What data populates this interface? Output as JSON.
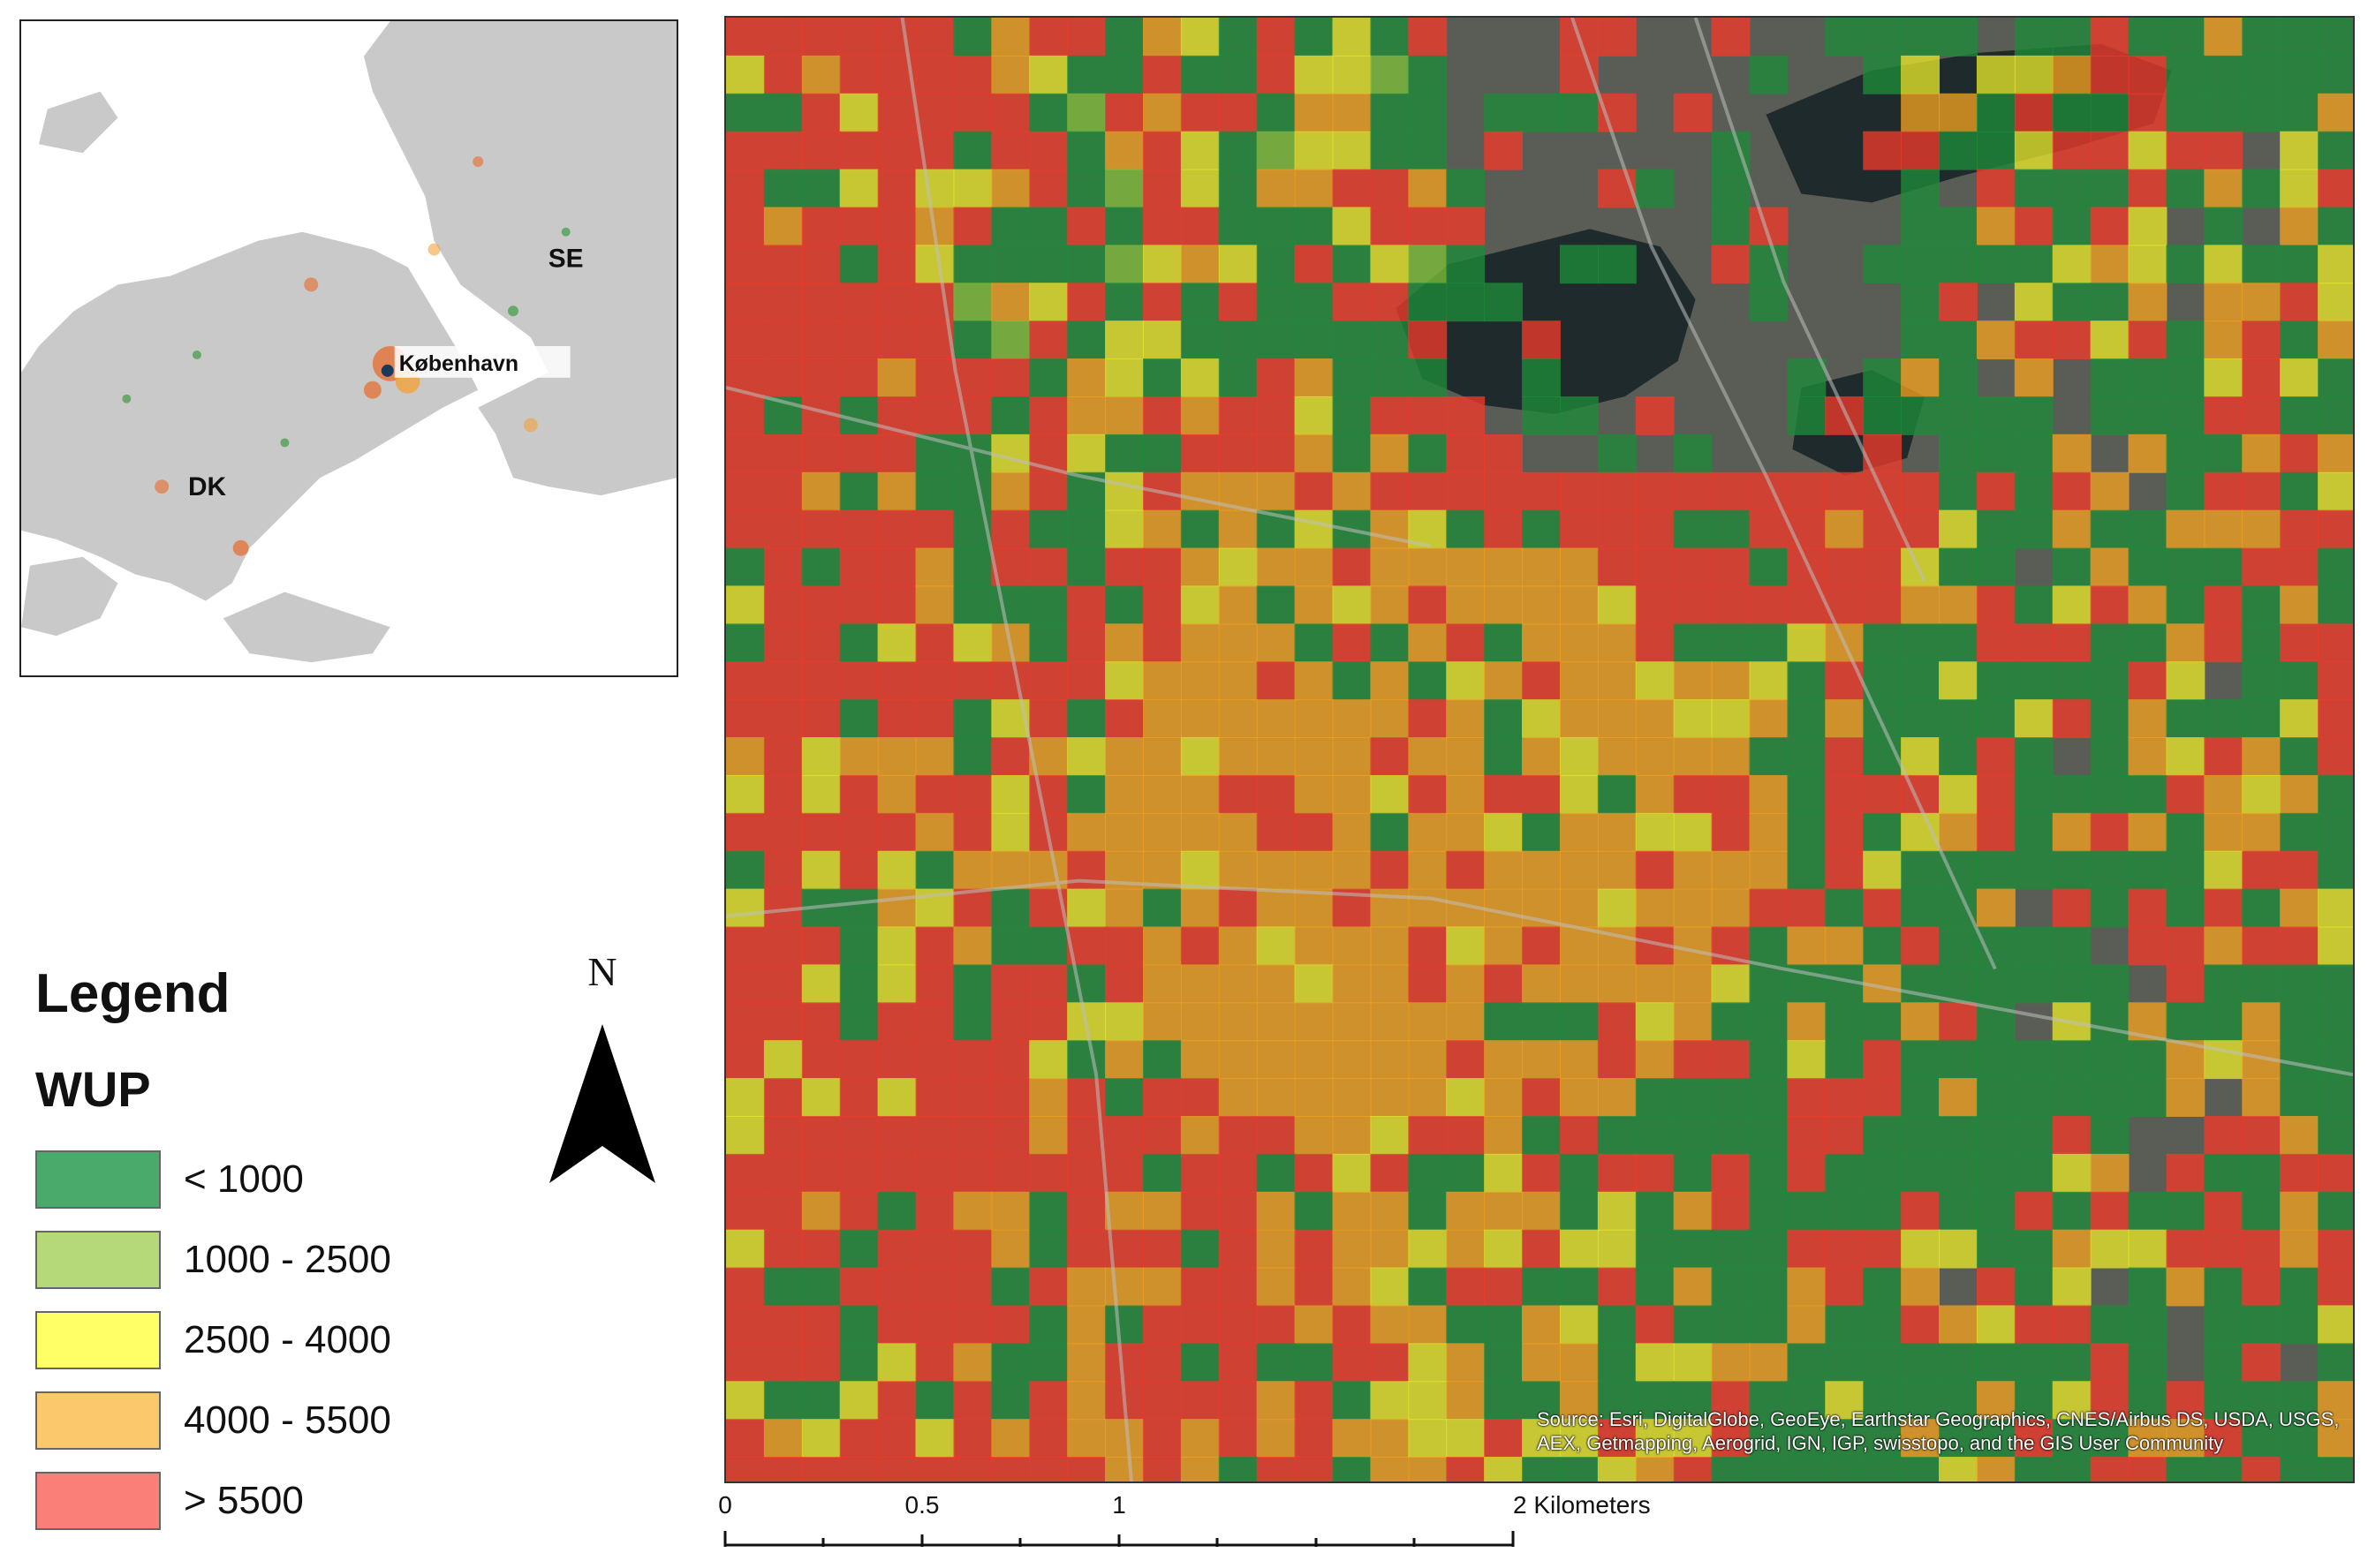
{
  "inset_map": {
    "labels": {
      "country_se": "SE",
      "country_dk": "DK",
      "city": "København"
    }
  },
  "legend": {
    "title": "Legend",
    "subtitle": "WUP",
    "classes": [
      {
        "label": "< 1000",
        "color": "#4aaa6c"
      },
      {
        "label": "1000 - 2500",
        "color": "#b5d878"
      },
      {
        "label": "2500 - 4000",
        "color": "#ffff66"
      },
      {
        "label": "4000 - 5500",
        "color": "#fcc86c"
      },
      {
        "label": "> 5500",
        "color": "#fa7f78"
      }
    ]
  },
  "north_arrow": {
    "label": "N"
  },
  "main_map": {
    "overlay_colors": {
      "green": "#1d8a3a",
      "lightgreen": "#7cbf3a",
      "yellow": "#e6e62a",
      "orange": "#f0a020",
      "red": "#ee3a2a"
    }
  },
  "scale_bar": {
    "ticks": [
      "0",
      "0.5",
      "1",
      "2 Kilometers"
    ]
  },
  "attribution": {
    "text": "Source: Esri, DigitalGlobe, GeoEye, Earthstar Geographics, CNES/Airbus DS, USDA, USGS, AEX, Getmapping, Aerogrid, IGN, IGP, swisstopo, and the GIS User Community"
  }
}
